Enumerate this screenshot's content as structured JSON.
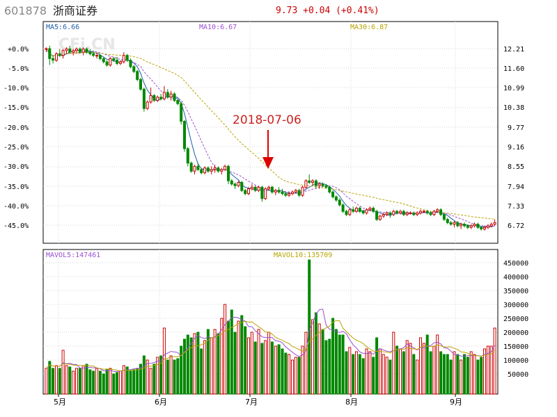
{
  "header": {
    "code": "601878",
    "name": "浙商证券",
    "quote": "9.73 +0.04 (+0.41%)",
    "watermark": "CFi.CN"
  },
  "price_panel": {
    "ma_labels": [
      {
        "text": "MA5:6.66",
        "color": "#1f5fa8"
      },
      {
        "text": "MA10:6.67",
        "color": "#9b4fd0"
      },
      {
        "text": "MA30:6.87",
        "color": "#b8a400"
      }
    ],
    "left_ticks": [
      "+0.0%",
      "-5.0%",
      "-10.0%",
      "-15.0%",
      "-20.0%",
      "-25.0%",
      "-30.0%",
      "-35.0%",
      "-40.0%",
      "-45.0%"
    ],
    "right_ticks": [
      "12.21",
      "11.60",
      "10.99",
      "10.38",
      "9.77",
      "9.16",
      "8.55",
      "7.94",
      "7.33",
      "6.72"
    ],
    "annotation": "2018-07-06"
  },
  "volume_panel": {
    "labels": [
      {
        "text": "MAVOL5:147461",
        "color": "#9b4fd0"
      },
      {
        "text": "MAVOL10:135709",
        "color": "#b8a400"
      }
    ],
    "ticks": [
      "450000",
      "400000",
      "350000",
      "300000",
      "250000",
      "200000",
      "150000",
      "100000",
      "50000"
    ]
  },
  "months": [
    "5月",
    "6月",
    "7月",
    "8月",
    "9月"
  ],
  "colors": {
    "up": "#cc0000",
    "down": "#008800",
    "ma5": "#1f5fa8",
    "ma10": "#9b4fd0",
    "ma30": "#b8a400",
    "arrow": "#dd0000"
  },
  "chart_data": {
    "type": "candlestick",
    "base_price": 12.21,
    "price_range": [
      6.4,
      12.7
    ],
    "volume_range": [
      0,
      480000
    ],
    "ohlc": [
      {
        "o": 12.2,
        "h": 12.25,
        "l": 12.1,
        "c": 12.21,
        "v": 70000
      },
      {
        "o": 12.21,
        "h": 12.3,
        "l": 11.7,
        "c": 11.9,
        "v": 95000
      },
      {
        "o": 11.9,
        "h": 12.0,
        "l": 11.75,
        "c": 11.85,
        "v": 70000
      },
      {
        "o": 11.85,
        "h": 12.1,
        "l": 11.8,
        "c": 12.05,
        "v": 80000
      },
      {
        "o": 12.05,
        "h": 12.2,
        "l": 11.95,
        "c": 12.0,
        "v": 70000
      },
      {
        "o": 12.0,
        "h": 12.2,
        "l": 11.9,
        "c": 12.15,
        "v": 135000
      },
      {
        "o": 12.15,
        "h": 12.25,
        "l": 12.05,
        "c": 12.2,
        "v": 80000
      },
      {
        "o": 12.2,
        "h": 12.3,
        "l": 12.05,
        "c": 12.1,
        "v": 75000
      },
      {
        "o": 12.1,
        "h": 12.2,
        "l": 12.0,
        "c": 12.15,
        "v": 60000
      },
      {
        "o": 12.15,
        "h": 12.25,
        "l": 12.05,
        "c": 12.2,
        "v": 70000
      },
      {
        "o": 12.2,
        "h": 12.25,
        "l": 12.05,
        "c": 12.1,
        "v": 70000
      },
      {
        "o": 12.1,
        "h": 12.25,
        "l": 12.0,
        "c": 12.2,
        "v": 80000
      },
      {
        "o": 12.2,
        "h": 12.25,
        "l": 12.05,
        "c": 12.1,
        "v": 85000
      },
      {
        "o": 12.1,
        "h": 12.2,
        "l": 12.0,
        "c": 12.05,
        "v": 65000
      },
      {
        "o": 12.05,
        "h": 12.15,
        "l": 11.95,
        "c": 12.0,
        "v": 60000
      },
      {
        "o": 12.0,
        "h": 12.1,
        "l": 11.9,
        "c": 12.0,
        "v": 70000
      },
      {
        "o": 12.0,
        "h": 12.05,
        "l": 11.85,
        "c": 11.9,
        "v": 60000
      },
      {
        "o": 11.9,
        "h": 11.95,
        "l": 11.75,
        "c": 11.8,
        "v": 50000
      },
      {
        "o": 11.8,
        "h": 11.85,
        "l": 11.65,
        "c": 11.7,
        "v": 65000
      },
      {
        "o": 11.7,
        "h": 11.95,
        "l": 11.65,
        "c": 11.9,
        "v": 70000
      },
      {
        "o": 11.9,
        "h": 11.95,
        "l": 11.8,
        "c": 11.85,
        "v": 50000
      },
      {
        "o": 11.85,
        "h": 11.95,
        "l": 11.7,
        "c": 11.75,
        "v": 55000
      },
      {
        "o": 11.75,
        "h": 11.85,
        "l": 11.7,
        "c": 11.8,
        "v": 60000
      },
      {
        "o": 11.8,
        "h": 12.1,
        "l": 11.75,
        "c": 12.0,
        "v": 80000
      },
      {
        "o": 12.0,
        "h": 12.05,
        "l": 11.8,
        "c": 11.85,
        "v": 75000
      },
      {
        "o": 11.85,
        "h": 11.9,
        "l": 11.6,
        "c": 11.65,
        "v": 60000
      },
      {
        "o": 11.65,
        "h": 11.7,
        "l": 11.45,
        "c": 11.5,
        "v": 65000
      },
      {
        "o": 11.5,
        "h": 11.55,
        "l": 11.2,
        "c": 11.25,
        "v": 70000
      },
      {
        "o": 11.25,
        "h": 11.3,
        "l": 10.9,
        "c": 10.95,
        "v": 85000
      },
      {
        "o": 10.95,
        "h": 11.0,
        "l": 10.25,
        "c": 10.35,
        "v": 115000
      },
      {
        "o": 10.35,
        "h": 10.6,
        "l": 10.3,
        "c": 10.55,
        "v": 100000
      },
      {
        "o": 10.55,
        "h": 11.0,
        "l": 10.5,
        "c": 10.75,
        "v": 70000
      },
      {
        "o": 10.75,
        "h": 10.8,
        "l": 10.55,
        "c": 10.6,
        "v": 85000
      },
      {
        "o": 10.6,
        "h": 10.75,
        "l": 10.55,
        "c": 10.7,
        "v": 110000
      },
      {
        "o": 10.7,
        "h": 10.8,
        "l": 10.6,
        "c": 10.65,
        "v": 115000
      },
      {
        "o": 10.65,
        "h": 11.05,
        "l": 10.6,
        "c": 10.85,
        "v": 215000
      },
      {
        "o": 10.85,
        "h": 10.95,
        "l": 10.65,
        "c": 10.7,
        "v": 100000
      },
      {
        "o": 10.7,
        "h": 10.9,
        "l": 10.6,
        "c": 10.8,
        "v": 115000
      },
      {
        "o": 10.8,
        "h": 10.85,
        "l": 10.55,
        "c": 10.6,
        "v": 100000
      },
      {
        "o": 10.6,
        "h": 10.65,
        "l": 10.45,
        "c": 10.5,
        "v": 105000
      },
      {
        "o": 10.5,
        "h": 10.55,
        "l": 9.85,
        "c": 9.95,
        "v": 150000
      },
      {
        "o": 9.95,
        "h": 9.99,
        "l": 9.0,
        "c": 9.1,
        "v": 175000
      },
      {
        "o": 9.1,
        "h": 9.15,
        "l": 8.55,
        "c": 8.65,
        "v": 190000
      },
      {
        "o": 8.65,
        "h": 8.7,
        "l": 8.35,
        "c": 8.4,
        "v": 180000
      },
      {
        "o": 8.4,
        "h": 8.6,
        "l": 8.3,
        "c": 8.55,
        "v": 195000
      },
      {
        "o": 8.55,
        "h": 8.65,
        "l": 8.4,
        "c": 8.45,
        "v": 200000
      },
      {
        "o": 8.45,
        "h": 8.5,
        "l": 8.3,
        "c": 8.35,
        "v": 140000
      },
      {
        "o": 8.35,
        "h": 8.55,
        "l": 8.3,
        "c": 8.5,
        "v": 170000
      },
      {
        "o": 8.5,
        "h": 8.55,
        "l": 8.35,
        "c": 8.4,
        "v": 210000
      },
      {
        "o": 8.4,
        "h": 8.55,
        "l": 8.3,
        "c": 8.45,
        "v": 180000
      },
      {
        "o": 8.45,
        "h": 8.6,
        "l": 8.35,
        "c": 8.5,
        "v": 210000
      },
      {
        "o": 8.5,
        "h": 8.55,
        "l": 8.35,
        "c": 8.4,
        "v": 195000
      },
      {
        "o": 8.4,
        "h": 8.5,
        "l": 8.3,
        "c": 8.45,
        "v": 250000
      },
      {
        "o": 8.45,
        "h": 8.6,
        "l": 8.4,
        "c": 8.55,
        "v": 300000
      },
      {
        "o": 8.55,
        "h": 8.6,
        "l": 8.0,
        "c": 8.1,
        "v": 240000
      },
      {
        "o": 8.1,
        "h": 8.15,
        "l": 7.95,
        "c": 8.0,
        "v": 280000
      },
      {
        "o": 8.0,
        "h": 8.05,
        "l": 7.85,
        "c": 7.95,
        "v": 200000
      },
      {
        "o": 7.95,
        "h": 8.1,
        "l": 7.9,
        "c": 8.05,
        "v": 240000
      },
      {
        "o": 8.05,
        "h": 8.1,
        "l": 7.75,
        "c": 7.8,
        "v": 260000
      },
      {
        "o": 7.8,
        "h": 7.85,
        "l": 7.65,
        "c": 7.7,
        "v": 220000
      },
      {
        "o": 7.7,
        "h": 7.9,
        "l": 7.65,
        "c": 7.85,
        "v": 180000
      },
      {
        "o": 7.85,
        "h": 8.0,
        "l": 7.8,
        "c": 7.9,
        "v": 200000
      },
      {
        "o": 7.9,
        "h": 7.95,
        "l": 7.75,
        "c": 7.8,
        "v": 165000
      },
      {
        "o": 7.8,
        "h": 7.95,
        "l": 7.75,
        "c": 7.9,
        "v": 210000
      },
      {
        "o": 7.9,
        "h": 7.95,
        "l": 7.45,
        "c": 7.55,
        "v": 160000
      },
      {
        "o": 7.55,
        "h": 7.9,
        "l": 7.5,
        "c": 7.85,
        "v": 170000
      },
      {
        "o": 7.85,
        "h": 7.95,
        "l": 7.8,
        "c": 7.9,
        "v": 200000
      },
      {
        "o": 7.9,
        "h": 7.95,
        "l": 7.7,
        "c": 7.75,
        "v": 165000
      },
      {
        "o": 7.75,
        "h": 7.85,
        "l": 7.65,
        "c": 7.8,
        "v": 150000
      },
      {
        "o": 7.8,
        "h": 7.9,
        "l": 7.7,
        "c": 7.75,
        "v": 155000
      },
      {
        "o": 7.75,
        "h": 7.85,
        "l": 7.65,
        "c": 7.7,
        "v": 140000
      },
      {
        "o": 7.7,
        "h": 7.75,
        "l": 7.6,
        "c": 7.65,
        "v": 125000
      },
      {
        "o": 7.65,
        "h": 7.75,
        "l": 7.6,
        "c": 7.7,
        "v": 120000
      },
      {
        "o": 7.7,
        "h": 7.8,
        "l": 7.65,
        "c": 7.75,
        "v": 100000
      },
      {
        "o": 7.75,
        "h": 7.85,
        "l": 7.7,
        "c": 7.8,
        "v": 110000
      },
      {
        "o": 7.8,
        "h": 7.85,
        "l": 7.6,
        "c": 7.65,
        "v": 110000
      },
      {
        "o": 7.65,
        "h": 7.95,
        "l": 7.6,
        "c": 7.9,
        "v": 150000
      },
      {
        "o": 7.9,
        "h": 8.15,
        "l": 7.85,
        "c": 8.1,
        "v": 200000
      },
      {
        "o": 8.1,
        "h": 8.3,
        "l": 8.0,
        "c": 8.05,
        "v": 460000
      },
      {
        "o": 8.05,
        "h": 8.15,
        "l": 7.95,
        "c": 8.1,
        "v": 245000
      },
      {
        "o": 8.1,
        "h": 8.15,
        "l": 7.85,
        "c": 7.95,
        "v": 270000
      },
      {
        "o": 7.95,
        "h": 8.05,
        "l": 7.85,
        "c": 8.0,
        "v": 230000
      },
      {
        "o": 8.0,
        "h": 8.05,
        "l": 7.9,
        "c": 7.95,
        "v": 210000
      },
      {
        "o": 7.95,
        "h": 8.0,
        "l": 7.85,
        "c": 7.9,
        "v": 170000
      },
      {
        "o": 7.9,
        "h": 7.95,
        "l": 7.7,
        "c": 7.75,
        "v": 175000
      },
      {
        "o": 7.75,
        "h": 7.8,
        "l": 7.55,
        "c": 7.6,
        "v": 250000
      },
      {
        "o": 7.6,
        "h": 7.65,
        "l": 7.45,
        "c": 7.5,
        "v": 210000
      },
      {
        "o": 7.5,
        "h": 7.55,
        "l": 7.3,
        "c": 7.35,
        "v": 190000
      },
      {
        "o": 7.35,
        "h": 7.4,
        "l": 7.1,
        "c": 7.15,
        "v": 190000
      },
      {
        "o": 7.15,
        "h": 7.2,
        "l": 7.0,
        "c": 7.05,
        "v": 130000
      },
      {
        "o": 7.05,
        "h": 7.25,
        "l": 7.0,
        "c": 7.2,
        "v": 145000
      },
      {
        "o": 7.2,
        "h": 7.3,
        "l": 7.1,
        "c": 7.15,
        "v": 120000
      },
      {
        "o": 7.15,
        "h": 7.3,
        "l": 7.1,
        "c": 7.25,
        "v": 130000
      },
      {
        "o": 7.25,
        "h": 7.3,
        "l": 7.1,
        "c": 7.15,
        "v": 120000
      },
      {
        "o": 7.15,
        "h": 7.2,
        "l": 7.05,
        "c": 7.1,
        "v": 105000
      },
      {
        "o": 7.1,
        "h": 7.25,
        "l": 7.05,
        "c": 7.2,
        "v": 140000
      },
      {
        "o": 7.2,
        "h": 7.3,
        "l": 7.15,
        "c": 7.25,
        "v": 130000
      },
      {
        "o": 7.25,
        "h": 7.3,
        "l": 7.1,
        "c": 7.15,
        "v": 110000
      },
      {
        "o": 7.15,
        "h": 7.2,
        "l": 6.85,
        "c": 6.9,
        "v": 180000
      },
      {
        "o": 6.9,
        "h": 7.05,
        "l": 6.85,
        "c": 7.0,
        "v": 140000
      },
      {
        "o": 7.0,
        "h": 7.1,
        "l": 6.95,
        "c": 7.05,
        "v": 120000
      },
      {
        "o": 7.05,
        "h": 7.15,
        "l": 7.0,
        "c": 7.1,
        "v": 110000
      },
      {
        "o": 7.1,
        "h": 7.15,
        "l": 6.95,
        "c": 7.05,
        "v": 100000
      },
      {
        "o": 7.05,
        "h": 7.2,
        "l": 7.0,
        "c": 7.15,
        "v": 200000
      },
      {
        "o": 7.15,
        "h": 7.2,
        "l": 7.05,
        "c": 7.1,
        "v": 150000
      },
      {
        "o": 7.1,
        "h": 7.2,
        "l": 7.05,
        "c": 7.15,
        "v": 140000
      },
      {
        "o": 7.15,
        "h": 7.2,
        "l": 7.0,
        "c": 7.05,
        "v": 130000
      },
      {
        "o": 7.05,
        "h": 7.15,
        "l": 7.0,
        "c": 7.1,
        "v": 170000
      },
      {
        "o": 7.1,
        "h": 7.15,
        "l": 7.05,
        "c": 7.1,
        "v": 160000
      },
      {
        "o": 7.1,
        "h": 7.15,
        "l": 7.0,
        "c": 7.05,
        "v": 120000
      },
      {
        "o": 7.05,
        "h": 7.15,
        "l": 7.0,
        "c": 7.1,
        "v": 100000
      },
      {
        "o": 7.1,
        "h": 7.2,
        "l": 7.05,
        "c": 7.15,
        "v": 180000
      },
      {
        "o": 7.15,
        "h": 7.2,
        "l": 7.1,
        "c": 7.15,
        "v": 160000
      },
      {
        "o": 7.15,
        "h": 7.2,
        "l": 7.05,
        "c": 7.1,
        "v": 190000
      },
      {
        "o": 7.1,
        "h": 7.15,
        "l": 7.0,
        "c": 7.05,
        "v": 130000
      },
      {
        "o": 7.05,
        "h": 7.2,
        "l": 7.0,
        "c": 7.15,
        "v": 150000
      },
      {
        "o": 7.15,
        "h": 7.25,
        "l": 7.1,
        "c": 7.2,
        "v": 190000
      },
      {
        "o": 7.2,
        "h": 7.25,
        "l": 7.0,
        "c": 7.05,
        "v": 130000
      },
      {
        "o": 7.05,
        "h": 7.1,
        "l": 6.85,
        "c": 6.9,
        "v": 120000
      },
      {
        "o": 6.9,
        "h": 6.95,
        "l": 6.75,
        "c": 6.8,
        "v": 120000
      },
      {
        "o": 6.8,
        "h": 6.85,
        "l": 6.7,
        "c": 6.75,
        "v": 100000
      },
      {
        "o": 6.75,
        "h": 6.85,
        "l": 6.65,
        "c": 6.8,
        "v": 130000
      },
      {
        "o": 6.8,
        "h": 6.85,
        "l": 6.65,
        "c": 6.7,
        "v": 120000
      },
      {
        "o": 6.7,
        "h": 6.8,
        "l": 6.6,
        "c": 6.75,
        "v": 100000
      },
      {
        "o": 6.75,
        "h": 6.8,
        "l": 6.65,
        "c": 6.7,
        "v": 120000
      },
      {
        "o": 6.7,
        "h": 6.75,
        "l": 6.6,
        "c": 6.65,
        "v": 110000
      },
      {
        "o": 6.65,
        "h": 6.75,
        "l": 6.6,
        "c": 6.7,
        "v": 130000
      },
      {
        "o": 6.7,
        "h": 6.8,
        "l": 6.65,
        "c": 6.75,
        "v": 120000
      },
      {
        "o": 6.75,
        "h": 6.8,
        "l": 6.6,
        "c": 6.65,
        "v": 100000
      },
      {
        "o": 6.65,
        "h": 6.7,
        "l": 6.55,
        "c": 6.6,
        "v": 110000
      },
      {
        "o": 6.6,
        "h": 6.7,
        "l": 6.55,
        "c": 6.65,
        "v": 140000
      },
      {
        "o": 6.65,
        "h": 6.75,
        "l": 6.6,
        "c": 6.7,
        "v": 150000
      },
      {
        "o": 6.7,
        "h": 6.8,
        "l": 6.65,
        "c": 6.75,
        "v": 150000
      },
      {
        "o": 6.75,
        "h": 6.9,
        "l": 6.7,
        "c": 6.8,
        "v": 215000
      }
    ]
  }
}
